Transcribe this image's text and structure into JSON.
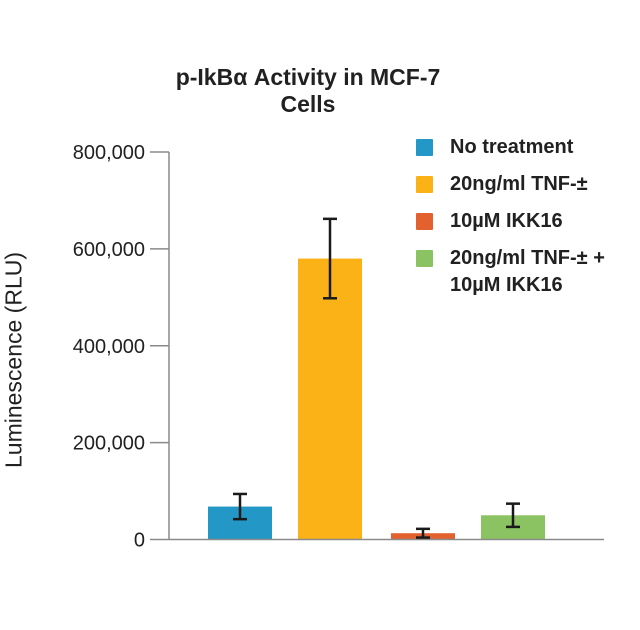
{
  "chart_data": {
    "type": "bar",
    "title": "p-IkBα Activity in MCF-7 Cells",
    "xlabel": "",
    "ylabel": "Luminescence (RLU)",
    "ylim": [
      0,
      800000
    ],
    "yticks": [
      0,
      200000,
      400000,
      600000,
      800000
    ],
    "ytick_labels": [
      "0",
      "200,000",
      "400,000",
      "600,000",
      "800,000"
    ],
    "grid": false,
    "legend_position": "top-right",
    "categories": [
      "No treatment",
      "20ng/ml TNF-±",
      "10µM IKK16",
      "20ng/ml TNF-± + 10µM IKK16"
    ],
    "values": [
      68000,
      580000,
      13000,
      50000
    ],
    "error_bars": [
      26000,
      82000,
      9000,
      24000
    ],
    "bar_colors": [
      "#2397C5",
      "#FBB217",
      "#E2612E",
      "#8CC362"
    ]
  },
  "legend": {
    "items": [
      {
        "label": "No treatment",
        "color": "#2397C5"
      },
      {
        "label": "20ng/ml TNF-±",
        "color": "#FBB217"
      },
      {
        "label": "10µM IKK16",
        "color": "#E2612E"
      },
      {
        "label": "20ng/ml TNF-± +\n10µM IKK16",
        "color": "#8CC362"
      }
    ]
  },
  "colors": {
    "axis": "#8A8A8A",
    "error_bar": "#1A1A1A",
    "text": "#212121",
    "background": "#FFFFFF"
  }
}
